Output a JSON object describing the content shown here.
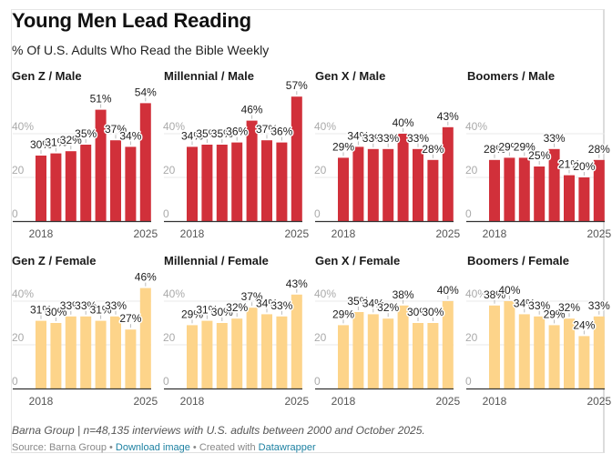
{
  "header": {
    "title": "Young Men Lead Reading",
    "subtitle": "% Of U.S. Adults Who Read the Bible Weekly"
  },
  "colors": {
    "male": "#d1303a",
    "female": "#fdd48a",
    "gridline": "#e8e8e8",
    "baseline": "#333333",
    "link": "#1d81a2"
  },
  "footer": {
    "notes": "Barna Group | n=48,135 interviews with U.S. adults between 2000 and October 2025.",
    "source_label": "Source: Barna Group",
    "separator": " • ",
    "download_label": "Download image",
    "created_label": "Created with ",
    "datawrapper_label": "Datawrapper"
  },
  "chart_data": {
    "type": "bar",
    "title": "Young Men Lead Reading",
    "subtitle": "% Of U.S. Adults Who Read the Bible Weekly",
    "categories": [
      "2018",
      "2019",
      "2020",
      "2021",
      "2022",
      "2023",
      "2024",
      "2025"
    ],
    "x_tick_labels": [
      "2018",
      "2025"
    ],
    "y_ticks": [
      "0",
      "20",
      "40%"
    ],
    "ylim": [
      0,
      60
    ],
    "grid": true,
    "value_suffix": "%",
    "panels": [
      {
        "title": "Gen Z / Male",
        "series": "male",
        "values": [
          30,
          31,
          32,
          35,
          51,
          37,
          34,
          54
        ]
      },
      {
        "title": "Millennial / Male",
        "series": "male",
        "values": [
          34,
          35,
          35,
          36,
          46,
          37,
          36,
          57
        ]
      },
      {
        "title": "Gen X / Male",
        "series": "male",
        "values": [
          29,
          34,
          33,
          33,
          40,
          33,
          28,
          43
        ]
      },
      {
        "title": "Boomers / Male",
        "series": "male",
        "values": [
          28,
          29,
          29,
          25,
          33,
          21,
          20,
          28
        ]
      },
      {
        "title": "Gen Z / Female",
        "series": "female",
        "values": [
          31,
          30,
          33,
          33,
          31,
          33,
          27,
          46
        ]
      },
      {
        "title": "Millennial / Female",
        "series": "female",
        "values": [
          29,
          31,
          30,
          32,
          37,
          34,
          33,
          43
        ]
      },
      {
        "title": "Gen X / Female",
        "series": "female",
        "values": [
          29,
          35,
          34,
          32,
          38,
          30,
          30,
          40
        ]
      },
      {
        "title": "Boomers / Female",
        "series": "female",
        "values": [
          38,
          40,
          34,
          33,
          29,
          32,
          24,
          33
        ]
      }
    ]
  }
}
